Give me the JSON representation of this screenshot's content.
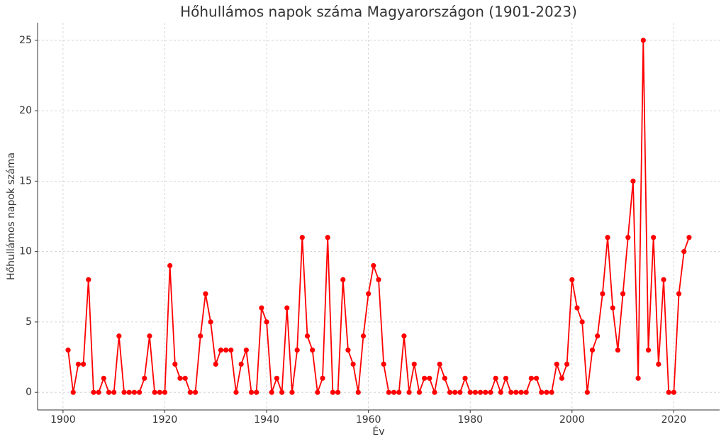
{
  "chart_data": {
    "type": "line",
    "title": "Hőhullámos napok száma Magyarországon (1901-2023)",
    "x_label": "Év",
    "y_label": "Hőhullámos napok száma",
    "x": [
      1901,
      1902,
      1903,
      1904,
      1905,
      1906,
      1907,
      1908,
      1909,
      1910,
      1911,
      1912,
      1913,
      1914,
      1915,
      1916,
      1917,
      1918,
      1919,
      1920,
      1921,
      1922,
      1923,
      1924,
      1925,
      1926,
      1927,
      1928,
      1929,
      1930,
      1931,
      1932,
      1933,
      1934,
      1935,
      1936,
      1937,
      1938,
      1939,
      1940,
      1941,
      1942,
      1943,
      1944,
      1945,
      1946,
      1947,
      1948,
      1949,
      1950,
      1951,
      1952,
      1953,
      1954,
      1955,
      1956,
      1957,
      1958,
      1959,
      1960,
      1961,
      1962,
      1963,
      1964,
      1965,
      1966,
      1967,
      1968,
      1969,
      1970,
      1971,
      1972,
      1973,
      1974,
      1975,
      1976,
      1977,
      1978,
      1979,
      1980,
      1981,
      1982,
      1983,
      1984,
      1985,
      1986,
      1987,
      1988,
      1989,
      1990,
      1991,
      1992,
      1993,
      1994,
      1995,
      1996,
      1997,
      1998,
      1999,
      2000,
      2001,
      2002,
      2003,
      2004,
      2005,
      2006,
      2007,
      2008,
      2009,
      2010,
      2011,
      2012,
      2013,
      2014,
      2015,
      2016,
      2017,
      2018,
      2019,
      2020,
      2021,
      2022,
      2023
    ],
    "series": [
      {
        "name": "Hőhullámos napok",
        "color": "#ff0000",
        "values": [
          3,
          0,
          2,
          2,
          8,
          0,
          0,
          1,
          0,
          0,
          4,
          0,
          0,
          0,
          0,
          1,
          4,
          0,
          0,
          0,
          9,
          2,
          1,
          1,
          0,
          0,
          4,
          7,
          5,
          2,
          3,
          3,
          3,
          0,
          2,
          3,
          0,
          0,
          6,
          5,
          0,
          1,
          0,
          6,
          0,
          3,
          11,
          4,
          3,
          0,
          1,
          11,
          0,
          0,
          8,
          3,
          2,
          0,
          4,
          7,
          9,
          8,
          2,
          0,
          0,
          0,
          4,
          0,
          2,
          0,
          1,
          1,
          0,
          2,
          1,
          0,
          0,
          0,
          1,
          0,
          0,
          0,
          0,
          0,
          1,
          0,
          1,
          0,
          0,
          0,
          0,
          1,
          1,
          0,
          0,
          0,
          2,
          1,
          2,
          8,
          6,
          5,
          0,
          3,
          4,
          7,
          11,
          6,
          3,
          7,
          11,
          15,
          1,
          25,
          3,
          11,
          2,
          8,
          0,
          0,
          7,
          10,
          11
        ]
      }
    ],
    "xlim": [
      1895,
      2029
    ],
    "xticks": [
      1900,
      1920,
      1940,
      1960,
      1980,
      2000,
      2020
    ],
    "ylim": [
      -1.25,
      26.25
    ],
    "yticks": [
      0,
      5,
      10,
      15,
      20,
      25
    ],
    "grid": true
  }
}
